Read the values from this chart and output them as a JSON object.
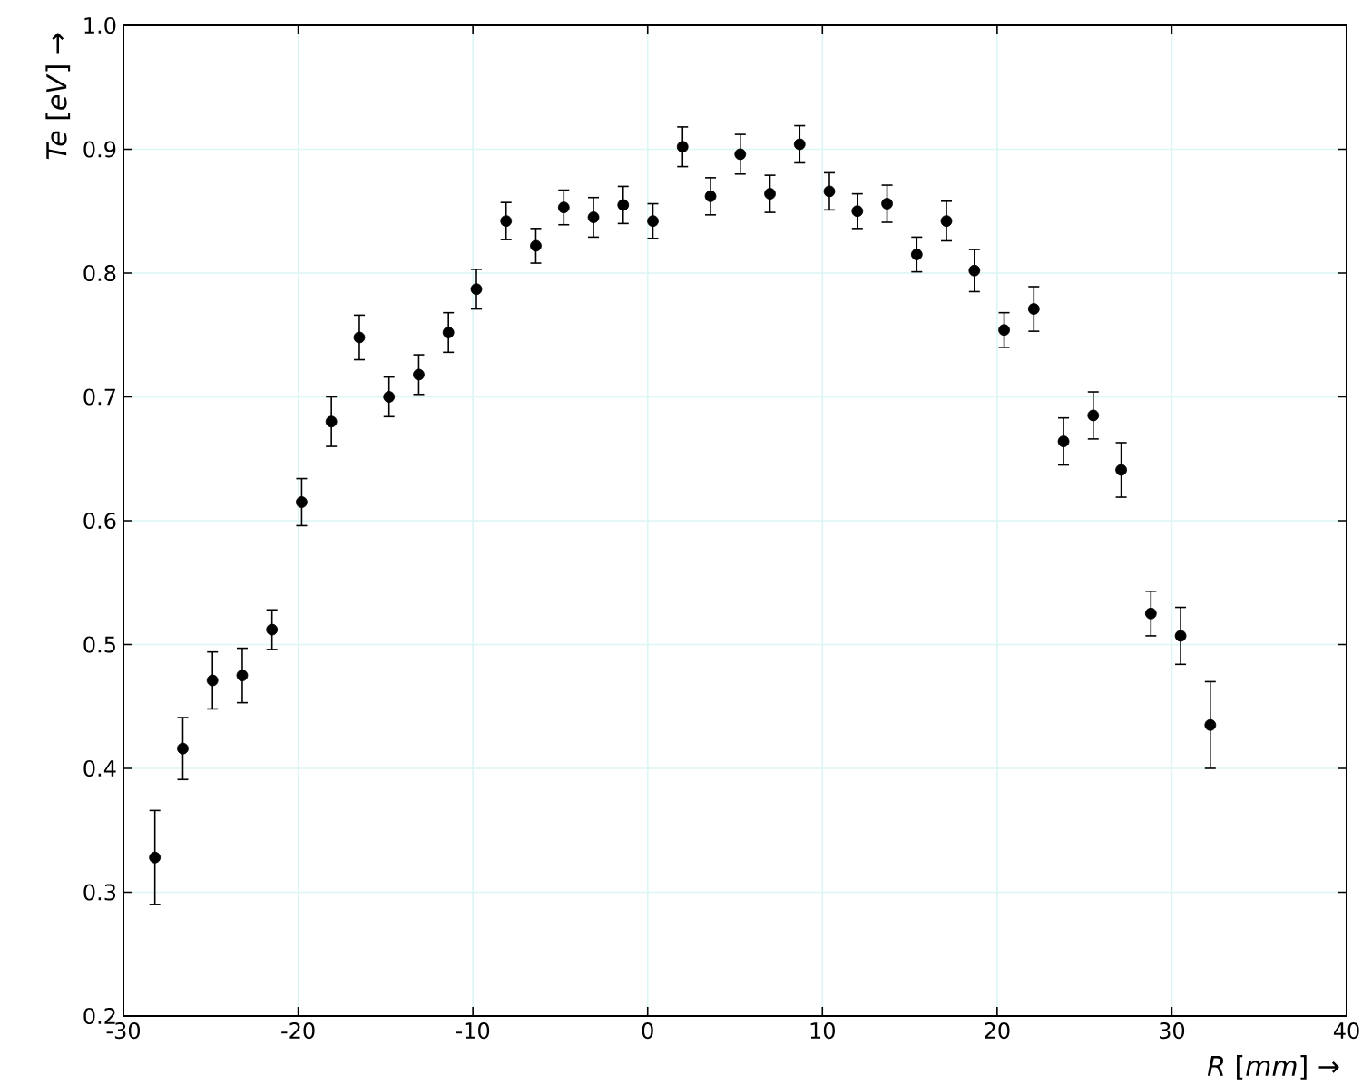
{
  "chart_data": {
    "type": "scatter",
    "xlabel": "*R* [*mm*] →",
    "ylabel": "*Te* [*eV*] →",
    "x": [
      -28.2,
      -26.6,
      -24.9,
      -23.2,
      -21.5,
      -19.8,
      -18.1,
      -16.5,
      -14.8,
      -13.1,
      -11.4,
      -9.8,
      -8.1,
      -6.4,
      -4.8,
      -3.1,
      -1.4,
      0.3,
      2.0,
      3.6,
      5.3,
      7.0,
      8.7,
      10.4,
      12.0,
      13.7,
      15.4,
      17.1,
      18.7,
      20.4,
      22.1,
      23.8,
      25.5,
      27.1,
      28.8,
      30.5,
      32.2
    ],
    "values": [
      0.328,
      0.416,
      0.471,
      0.475,
      0.512,
      0.615,
      0.68,
      0.748,
      0.7,
      0.718,
      0.752,
      0.787,
      0.842,
      0.822,
      0.853,
      0.845,
      0.855,
      0.842,
      0.902,
      0.862,
      0.896,
      0.864,
      0.904,
      0.866,
      0.85,
      0.856,
      0.815,
      0.842,
      0.802,
      0.754,
      0.771,
      0.664,
      0.685,
      0.641,
      0.525,
      0.507,
      0.435
    ],
    "errors": [
      0.038,
      0.025,
      0.023,
      0.022,
      0.016,
      0.019,
      0.02,
      0.018,
      0.016,
      0.016,
      0.016,
      0.016,
      0.015,
      0.014,
      0.014,
      0.016,
      0.015,
      0.014,
      0.016,
      0.015,
      0.016,
      0.015,
      0.015,
      0.015,
      0.014,
      0.015,
      0.014,
      0.016,
      0.017,
      0.014,
      0.018,
      0.019,
      0.019,
      0.022,
      0.018,
      0.023,
      0.035
    ],
    "color": "#000000",
    "marker": "circle",
    "grid": true,
    "xlim": [
      -30,
      40
    ],
    "xticks": [
      -30,
      -20,
      -10,
      0,
      10,
      20,
      30,
      40
    ],
    "ylim": [
      0.2,
      1.0
    ],
    "yticks": [
      0.2,
      0.3,
      0.4,
      0.5,
      0.6,
      0.7,
      0.8,
      0.9,
      {
        "value": 1.0,
        "label": "1.0"
      }
    ]
  }
}
